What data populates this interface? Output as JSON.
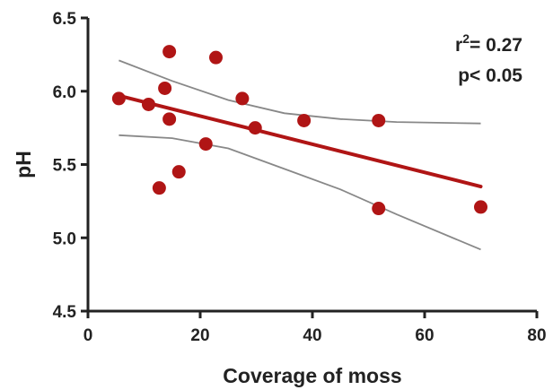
{
  "chart_data": {
    "type": "scatter",
    "xlabel": "Coverage of moss",
    "ylabel": "pH",
    "xlim": [
      0,
      80
    ],
    "ylim": [
      4.5,
      6.5
    ],
    "xticks": [
      "0",
      "20",
      "40",
      "60",
      "80"
    ],
    "yticks": [
      "4.5",
      "5.0",
      "5.5",
      "6.0",
      "6.5"
    ],
    "grid": false,
    "point_color": "#b01515",
    "fit_color": "#b01515",
    "ci_color": "#888888",
    "points": [
      {
        "x": 5.5,
        "y": 5.95
      },
      {
        "x": 10.8,
        "y": 5.91
      },
      {
        "x": 12.7,
        "y": 5.34
      },
      {
        "x": 13.7,
        "y": 6.02
      },
      {
        "x": 14.5,
        "y": 6.27
      },
      {
        "x": 14.5,
        "y": 5.81
      },
      {
        "x": 16.2,
        "y": 5.45
      },
      {
        "x": 21.0,
        "y": 5.64
      },
      {
        "x": 22.8,
        "y": 6.23
      },
      {
        "x": 27.5,
        "y": 5.95
      },
      {
        "x": 29.8,
        "y": 5.75
      },
      {
        "x": 38.5,
        "y": 5.8
      },
      {
        "x": 51.8,
        "y": 5.8
      },
      {
        "x": 51.8,
        "y": 5.2
      },
      {
        "x": 70.0,
        "y": 5.21
      }
    ],
    "fit_line": [
      {
        "x": 5.5,
        "y": 5.97
      },
      {
        "x": 70.0,
        "y": 5.35
      }
    ],
    "ci_upper": [
      {
        "x": 5.5,
        "y": 6.21
      },
      {
        "x": 15,
        "y": 6.07
      },
      {
        "x": 25,
        "y": 5.94
      },
      {
        "x": 35,
        "y": 5.85
      },
      {
        "x": 45,
        "y": 5.81
      },
      {
        "x": 55,
        "y": 5.79
      },
      {
        "x": 70.0,
        "y": 5.78
      }
    ],
    "ci_lower": [
      {
        "x": 5.5,
        "y": 5.7
      },
      {
        "x": 15,
        "y": 5.68
      },
      {
        "x": 25,
        "y": 5.61
      },
      {
        "x": 35,
        "y": 5.47
      },
      {
        "x": 45,
        "y": 5.33
      },
      {
        "x": 55,
        "y": 5.16
      },
      {
        "x": 70.0,
        "y": 4.92
      }
    ],
    "annotation": {
      "r2_prefix": "r",
      "r2_sup": "2",
      "r2_value": "= 0.27",
      "p_value": "p< 0.05"
    }
  }
}
